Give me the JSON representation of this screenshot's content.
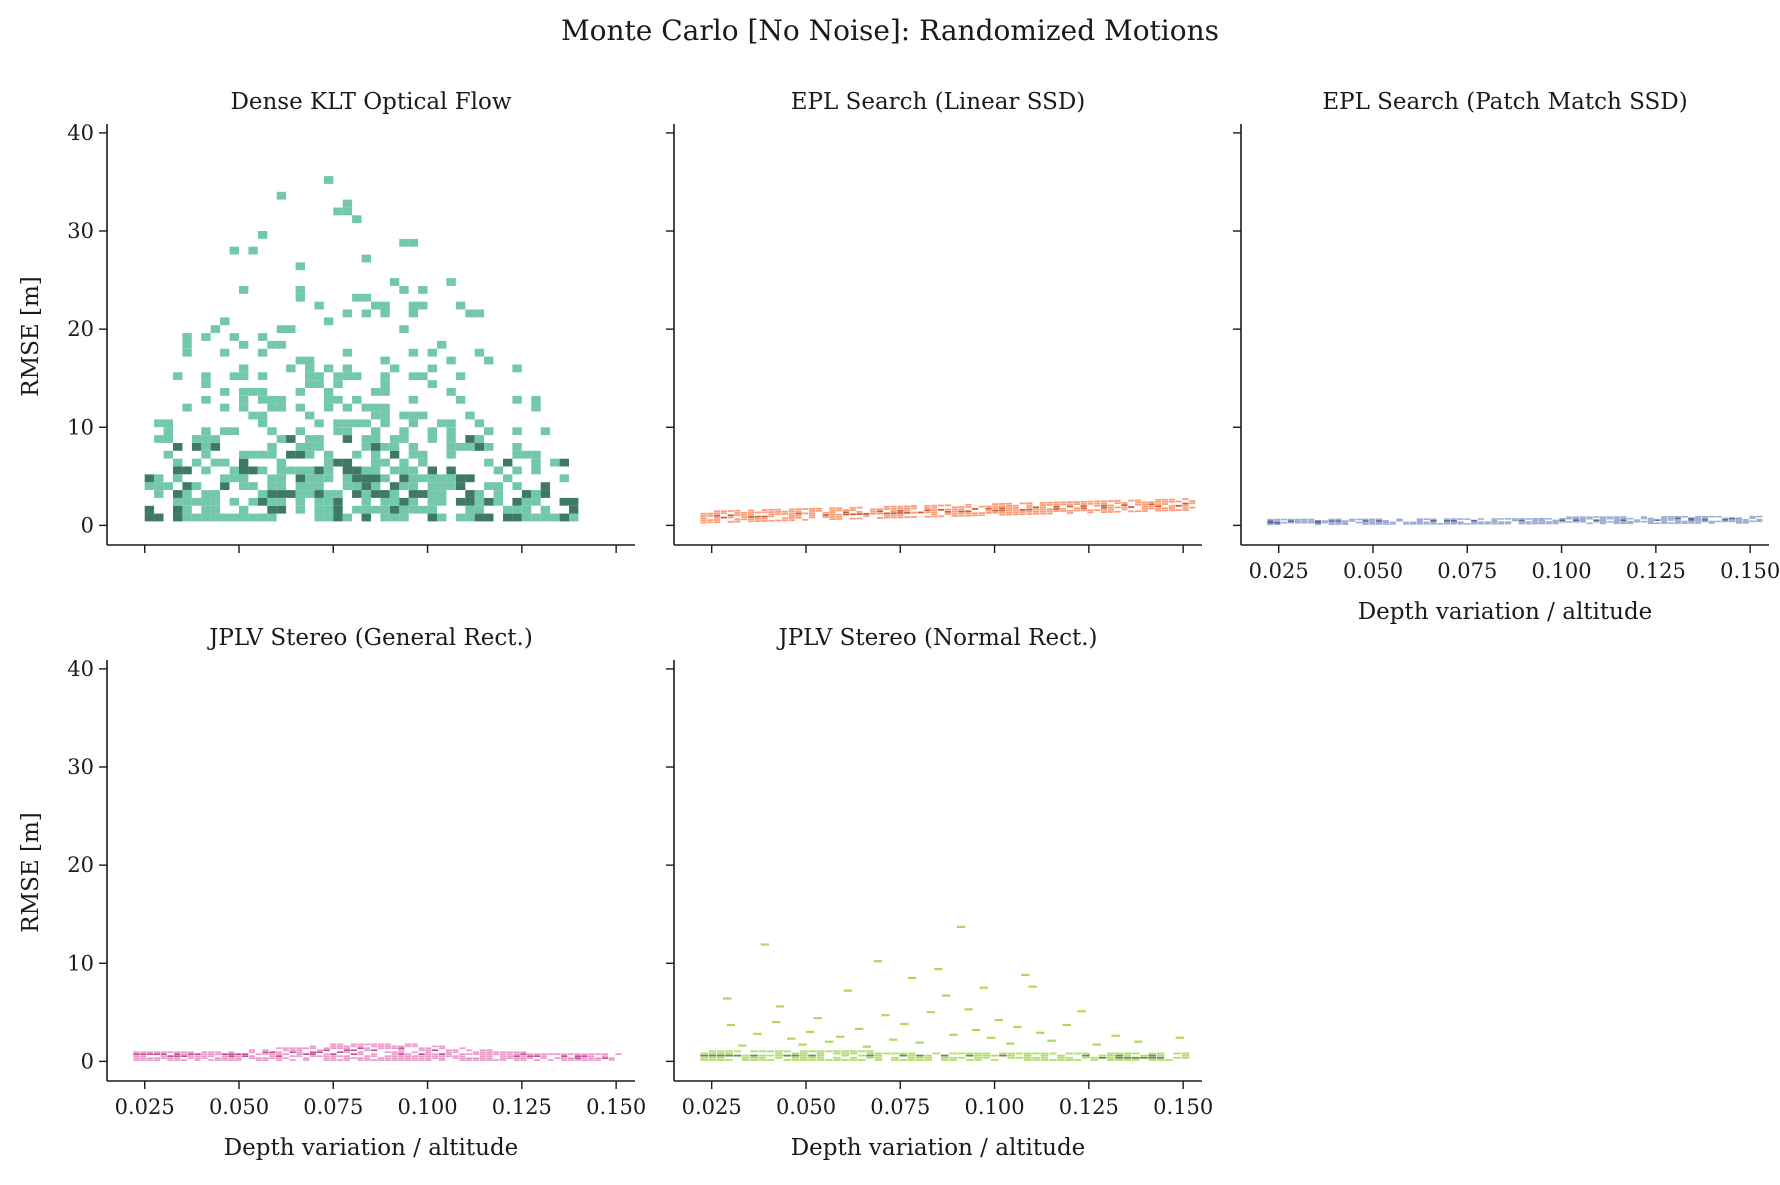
{
  "title": "Monte Carlo [No Noise]: Randomized Motions",
  "chart_data": [
    {
      "type": "heatmap",
      "title": "Dense KLT Optical Flow",
      "xlabel": "",
      "ylabel": "RMSE [m]",
      "xlim": [
        0.015,
        0.155
      ],
      "ylim": [
        -2,
        40.5
      ],
      "xticks": [
        0.025,
        0.05,
        0.075,
        0.1,
        0.125,
        0.15
      ],
      "yticks": [
        0,
        10,
        20,
        30,
        40
      ],
      "xtick_labels": [],
      "ytick_labels": [
        "0",
        "10",
        "20",
        "30",
        "40"
      ],
      "color": "#66c2a5",
      "dark_color": "#2f6e57",
      "cells": {
        "bin_x": 0.0025,
        "bin_y": 0.8,
        "x_range": [
          0.025,
          0.14
        ],
        "y_max": [
          12,
          22,
          32,
          38,
          34,
          28,
          22,
          16,
          11
        ],
        "y_floor": 0.4,
        "density": 0.5,
        "seed": 11
      }
    },
    {
      "type": "heatmap",
      "title": "EPL Search (Linear SSD)",
      "xlabel": "",
      "ylabel": "",
      "xlim": [
        0.015,
        0.155
      ],
      "ylim": [
        -2,
        40.5
      ],
      "xticks": [
        0.025,
        0.05,
        0.075,
        0.1,
        0.125,
        0.15
      ],
      "yticks": [
        0,
        10,
        20,
        30,
        40
      ],
      "xtick_labels": [],
      "ytick_labels": [],
      "color": "#fc8d62",
      "dark_color": "#c2451e",
      "band": {
        "x_range": [
          0.022,
          0.152
        ],
        "low_start": 0.2,
        "low_end": 1.5,
        "high_start": 1.3,
        "high_end": 2.7,
        "bin_x": 0.0018,
        "bin_y": 0.22,
        "seed": 23
      }
    },
    {
      "type": "heatmap",
      "title": "EPL Search (Patch Match SSD)",
      "xlabel": "Depth variation / altitude",
      "ylabel": "",
      "xlim": [
        0.015,
        0.155
      ],
      "ylim": [
        -2,
        40.5
      ],
      "xticks": [
        0.025,
        0.05,
        0.075,
        0.1,
        0.125,
        0.15
      ],
      "yticks": [
        0,
        10,
        20,
        30,
        40
      ],
      "xtick_labels": [
        "0.025",
        "0.050",
        "0.075",
        "0.100",
        "0.125",
        "0.150"
      ],
      "ytick_labels": [],
      "color": "#8da0cb",
      "dark_color": "#3f4f86",
      "band": {
        "x_range": [
          0.022,
          0.152
        ],
        "low_start": 0.05,
        "low_end": 0.2,
        "high_start": 0.6,
        "high_end": 0.9,
        "bin_x": 0.0018,
        "bin_y": 0.16,
        "seed": 37
      }
    },
    {
      "type": "heatmap",
      "title": "JPLV Stereo (General Rect.)",
      "xlabel": "Depth variation / altitude",
      "ylabel": "RMSE [m]",
      "xlim": [
        0.015,
        0.155
      ],
      "ylim": [
        -2,
        40.5
      ],
      "xticks": [
        0.025,
        0.05,
        0.075,
        0.1,
        0.125,
        0.15
      ],
      "yticks": [
        0,
        10,
        20,
        30,
        40
      ],
      "xtick_labels": [
        "0.025",
        "0.050",
        "0.075",
        "0.100",
        "0.125",
        "0.150"
      ],
      "ytick_labels": [
        "0",
        "10",
        "20",
        "30",
        "40"
      ],
      "color": "#e78ac3",
      "dark_color": "#b0377f",
      "band": {
        "x_range": [
          0.022,
          0.15
        ],
        "low_start": 0.05,
        "low_end": 0.05,
        "high_start": 0.9,
        "high_end": 0.7,
        "bump": 1.0,
        "bin_x": 0.0018,
        "bin_y": 0.2,
        "seed": 53
      }
    },
    {
      "type": "heatmap",
      "title": "JPLV Stereo (Normal Rect.)",
      "xlabel": "Depth variation / altitude",
      "ylabel": "",
      "xlim": [
        0.015,
        0.155
      ],
      "ylim": [
        -2,
        40.5
      ],
      "xticks": [
        0.025,
        0.05,
        0.075,
        0.1,
        0.125,
        0.15
      ],
      "yticks": [
        0,
        10,
        20,
        30,
        40
      ],
      "xtick_labels": [
        "0.025",
        "0.050",
        "0.075",
        "0.100",
        "0.125",
        "0.150"
      ],
      "ytick_labels": [],
      "color": "#a6d854",
      "dark_color": "#4e7a20",
      "band": {
        "x_range": [
          0.022,
          0.15
        ],
        "low_start": 0.05,
        "low_end": 0.05,
        "high_start": 1.0,
        "high_end": 0.8,
        "bin_x": 0.0022,
        "bin_y": 0.22,
        "seed": 71
      },
      "outliers": [
        [
          0.028,
          6.3
        ],
        [
          0.029,
          3.6
        ],
        [
          0.032,
          1.5
        ],
        [
          0.036,
          2.7
        ],
        [
          0.038,
          11.8
        ],
        [
          0.041,
          3.9
        ],
        [
          0.042,
          5.5
        ],
        [
          0.045,
          2.2
        ],
        [
          0.048,
          1.6
        ],
        [
          0.05,
          2.9
        ],
        [
          0.052,
          4.3
        ],
        [
          0.055,
          1.9
        ],
        [
          0.058,
          2.4
        ],
        [
          0.06,
          7.1
        ],
        [
          0.063,
          3.2
        ],
        [
          0.065,
          1.4
        ],
        [
          0.068,
          10.1
        ],
        [
          0.07,
          4.6
        ],
        [
          0.072,
          2.1
        ],
        [
          0.075,
          3.7
        ],
        [
          0.077,
          8.4
        ],
        [
          0.079,
          1.8
        ],
        [
          0.082,
          4.9
        ],
        [
          0.084,
          9.3
        ],
        [
          0.086,
          6.6
        ],
        [
          0.088,
          2.6
        ],
        [
          0.09,
          13.6
        ],
        [
          0.092,
          5.2
        ],
        [
          0.094,
          3.1
        ],
        [
          0.096,
          7.4
        ],
        [
          0.098,
          2.3
        ],
        [
          0.1,
          4.1
        ],
        [
          0.103,
          1.7
        ],
        [
          0.105,
          3.4
        ],
        [
          0.107,
          8.7
        ],
        [
          0.109,
          7.5
        ],
        [
          0.111,
          2.8
        ],
        [
          0.114,
          2.0
        ],
        [
          0.118,
          3.6
        ],
        [
          0.122,
          5.0
        ],
        [
          0.126,
          1.6
        ],
        [
          0.131,
          2.5
        ],
        [
          0.137,
          1.9
        ],
        [
          0.148,
          2.3
        ]
      ]
    }
  ]
}
